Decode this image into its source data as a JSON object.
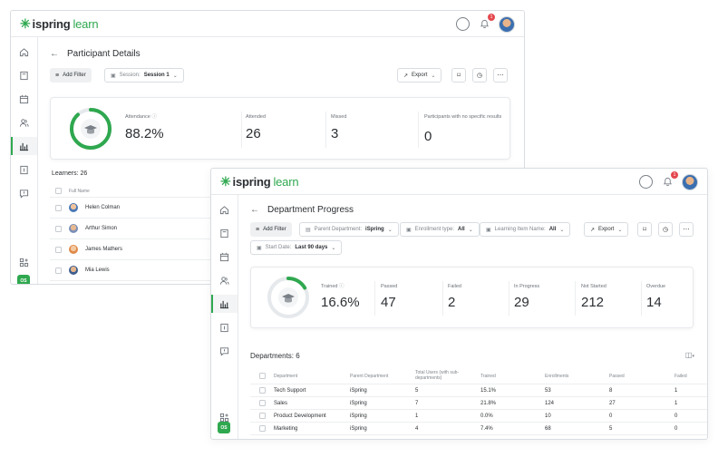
{
  "window1": {
    "logo": {
      "brand": "ispring",
      "product": "learn"
    },
    "notifications_count": "1",
    "page_title": "Participant Details",
    "filters": {
      "add_filter": "Add Filter",
      "session_label": "Session:",
      "session_value": "Session 1"
    },
    "export_label": "Export",
    "stats": {
      "attendance": {
        "label": "Attendance",
        "value": "88.2%",
        "ring_percent": 88.2
      },
      "attended": {
        "label": "Attended",
        "value": "26"
      },
      "missed": {
        "label": "Missed",
        "value": "3"
      },
      "no_results": {
        "label": "Participants with no specific results",
        "value": "0"
      }
    },
    "learners": {
      "title": "Learners: 26",
      "column": "Full Name",
      "rows": [
        "Helen Colman",
        "Arthur Simon",
        "James Mathers",
        "Mia Lewis"
      ]
    },
    "user_initials": "OS"
  },
  "window2": {
    "logo": {
      "brand": "ispring",
      "product": "learn"
    },
    "notifications_count": "1",
    "page_title": "Department Progress",
    "filters": {
      "add_filter": "Add Filter",
      "parent_department_label": "Parent Department:",
      "parent_department_value": "iSpring",
      "enrollment_type_label": "Enrollment type:",
      "enrollment_type_value": "All",
      "learning_item_label": "Learning Item Name:",
      "learning_item_value": "All",
      "start_date_label": "Start Date:",
      "start_date_value": "Last 90 days"
    },
    "export_label": "Export",
    "stats": {
      "trained": {
        "label": "Trained",
        "value": "16.6%",
        "ring_percent": 16.6
      },
      "passed": {
        "label": "Passed",
        "value": "47"
      },
      "failed": {
        "label": "Failed",
        "value": "2"
      },
      "in_progress": {
        "label": "In Progress",
        "value": "29"
      },
      "not_started": {
        "label": "Not Started",
        "value": "212"
      },
      "overdue": {
        "label": "Overdue",
        "value": "14"
      }
    },
    "departments": {
      "title": "Departments: 6",
      "columns": [
        "Department",
        "Parent Department",
        "Total Users (with sub-departments)",
        "Trained",
        "Enrollments",
        "Passed",
        "Failed"
      ],
      "rows": [
        [
          "Tech Support",
          "iSpring",
          "5",
          "15.1%",
          "53",
          "8",
          "1"
        ],
        [
          "Sales",
          "iSpring",
          "7",
          "21.8%",
          "124",
          "27",
          "1"
        ],
        [
          "Product Development",
          "iSpring",
          "1",
          "0.0%",
          "10",
          "0",
          "0"
        ],
        [
          "Marketing",
          "iSpring",
          "4",
          "7.4%",
          "68",
          "5",
          "0"
        ]
      ]
    },
    "user_initials": "OS"
  },
  "colors": {
    "brand_green": "#2fa84f",
    "ring_track": "#e6e9ec",
    "badge_red": "#e5484d"
  }
}
